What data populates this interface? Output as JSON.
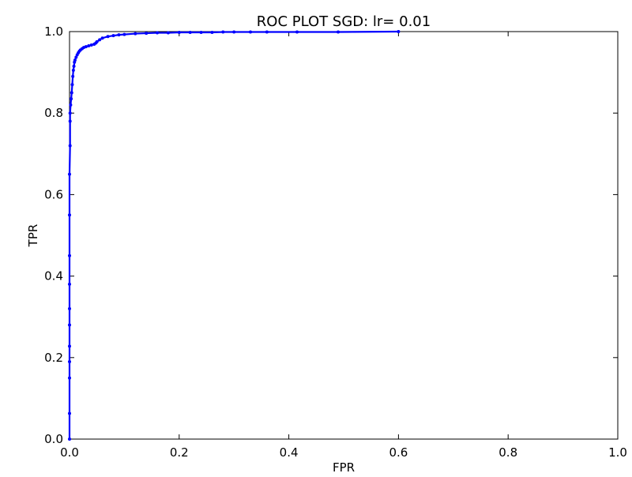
{
  "chart_data": {
    "type": "line",
    "title": "ROC PLOT SGD: lr= 0.01",
    "xlabel": "FPR",
    "ylabel": "TPR",
    "xlim": [
      0.0,
      1.0
    ],
    "ylim": [
      0.0,
      1.0
    ],
    "xticks": [
      "0.0",
      "0.2",
      "0.4",
      "0.6",
      "0.8",
      "1.0"
    ],
    "yticks": [
      "0.0",
      "0.2",
      "0.4",
      "0.6",
      "0.8",
      "1.0"
    ],
    "grid": false,
    "legend": "none",
    "series": [
      {
        "color": "#0000ff",
        "marker": "dot",
        "x": [
          0.0,
          0.0,
          0.0,
          0.0,
          0.0,
          0.0,
          0.0,
          0.0,
          0.0,
          0.0,
          0.0,
          0.001,
          0.001,
          0.001,
          0.002,
          0.003,
          0.004,
          0.005,
          0.006,
          0.007,
          0.008,
          0.009,
          0.01,
          0.012,
          0.014,
          0.016,
          0.018,
          0.02,
          0.023,
          0.026,
          0.03,
          0.035,
          0.04,
          0.045,
          0.048,
          0.05,
          0.055,
          0.06,
          0.07,
          0.08,
          0.09,
          0.1,
          0.12,
          0.14,
          0.16,
          0.18,
          0.2,
          0.22,
          0.24,
          0.26,
          0.28,
          0.3,
          0.33,
          0.36,
          0.415,
          0.49,
          0.6
        ],
        "y": [
          0.0,
          0.063,
          0.15,
          0.19,
          0.228,
          0.28,
          0.32,
          0.38,
          0.45,
          0.55,
          0.65,
          0.72,
          0.78,
          0.8,
          0.82,
          0.835,
          0.85,
          0.87,
          0.89,
          0.905,
          0.915,
          0.925,
          0.93,
          0.937,
          0.943,
          0.948,
          0.952,
          0.955,
          0.958,
          0.961,
          0.963,
          0.965,
          0.967,
          0.969,
          0.972,
          0.975,
          0.98,
          0.984,
          0.988,
          0.99,
          0.992,
          0.993,
          0.995,
          0.996,
          0.997,
          0.997,
          0.998,
          0.998,
          0.998,
          0.998,
          0.999,
          0.999,
          0.999,
          0.999,
          0.999,
          0.999,
          1.0
        ]
      }
    ]
  }
}
